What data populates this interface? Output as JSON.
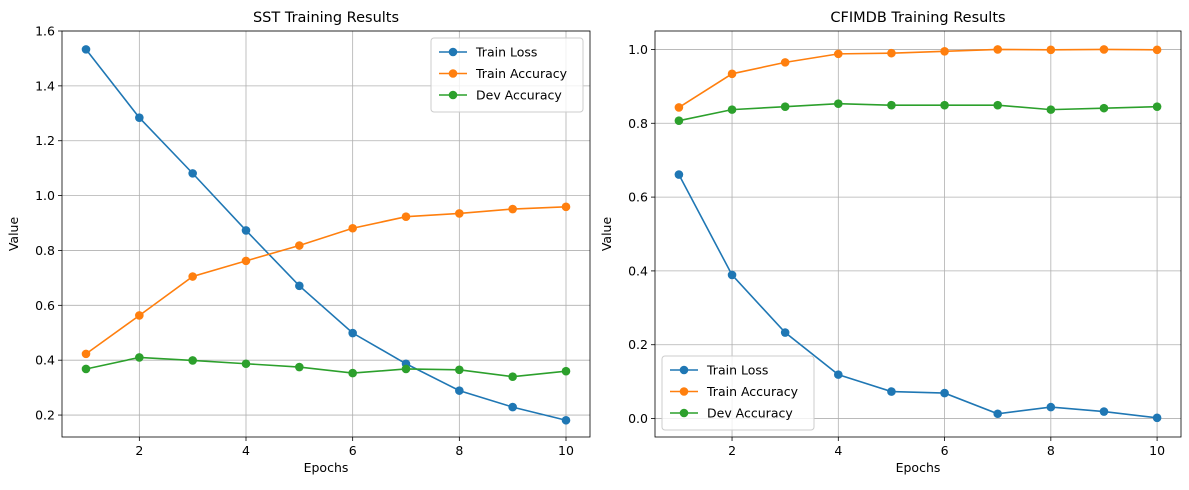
{
  "chart_data": [
    {
      "type": "line",
      "title": "SST Training Results",
      "xlabel": "Epochs",
      "ylabel": "Value",
      "x": [
        1,
        2,
        3,
        4,
        5,
        6,
        7,
        8,
        9,
        10
      ],
      "xlim": [
        0.55,
        10.45
      ],
      "ylim": [
        0.12,
        1.6
      ],
      "xticks": [
        2,
        4,
        6,
        8,
        10
      ],
      "yticks": [
        0.2,
        0.4,
        0.6,
        0.8,
        1.0,
        1.2,
        1.4,
        1.6
      ],
      "ytick_labels": [
        "0.2",
        "0.4",
        "0.6",
        "0.8",
        "1.0",
        "1.2",
        "1.4",
        "1.6"
      ],
      "grid": true,
      "legend_position": "top-right",
      "series": [
        {
          "name": "Train Loss",
          "color": "#1f77b4",
          "values": [
            1.533,
            1.284,
            1.081,
            0.873,
            0.671,
            0.499,
            0.387,
            0.289,
            0.229,
            0.181
          ]
        },
        {
          "name": "Train Accuracy",
          "color": "#ff7f0e",
          "values": [
            0.423,
            0.563,
            0.705,
            0.762,
            0.818,
            0.881,
            0.923,
            0.935,
            0.951,
            0.959
          ]
        },
        {
          "name": "Dev Accuracy",
          "color": "#2ca02c",
          "values": [
            0.368,
            0.41,
            0.399,
            0.387,
            0.375,
            0.353,
            0.368,
            0.365,
            0.34,
            0.36
          ]
        }
      ]
    },
    {
      "type": "line",
      "title": "CFIMDB Training Results",
      "xlabel": "Epochs",
      "ylabel": "Value",
      "x": [
        1,
        2,
        3,
        4,
        5,
        6,
        7,
        8,
        9,
        10
      ],
      "xlim": [
        0.55,
        10.45
      ],
      "ylim": [
        -0.05,
        1.05
      ],
      "xticks": [
        2,
        4,
        6,
        8,
        10
      ],
      "yticks": [
        0.0,
        0.2,
        0.4,
        0.6,
        0.8,
        1.0
      ],
      "ytick_labels": [
        "0.0",
        "0.2",
        "0.4",
        "0.6",
        "0.8",
        "1.0"
      ],
      "grid": true,
      "legend_position": "bottom-left",
      "series": [
        {
          "name": "Train Loss",
          "color": "#1f77b4",
          "values": [
            0.661,
            0.389,
            0.233,
            0.119,
            0.073,
            0.069,
            0.013,
            0.031,
            0.019,
            0.002
          ]
        },
        {
          "name": "Train Accuracy",
          "color": "#ff7f0e",
          "values": [
            0.843,
            0.934,
            0.965,
            0.988,
            0.99,
            0.995,
            1.0,
            0.999,
            1.0,
            0.999
          ]
        },
        {
          "name": "Dev Accuracy",
          "color": "#2ca02c",
          "values": [
            0.807,
            0.837,
            0.845,
            0.853,
            0.849,
            0.849,
            0.849,
            0.837,
            0.841,
            0.845
          ]
        }
      ]
    }
  ]
}
